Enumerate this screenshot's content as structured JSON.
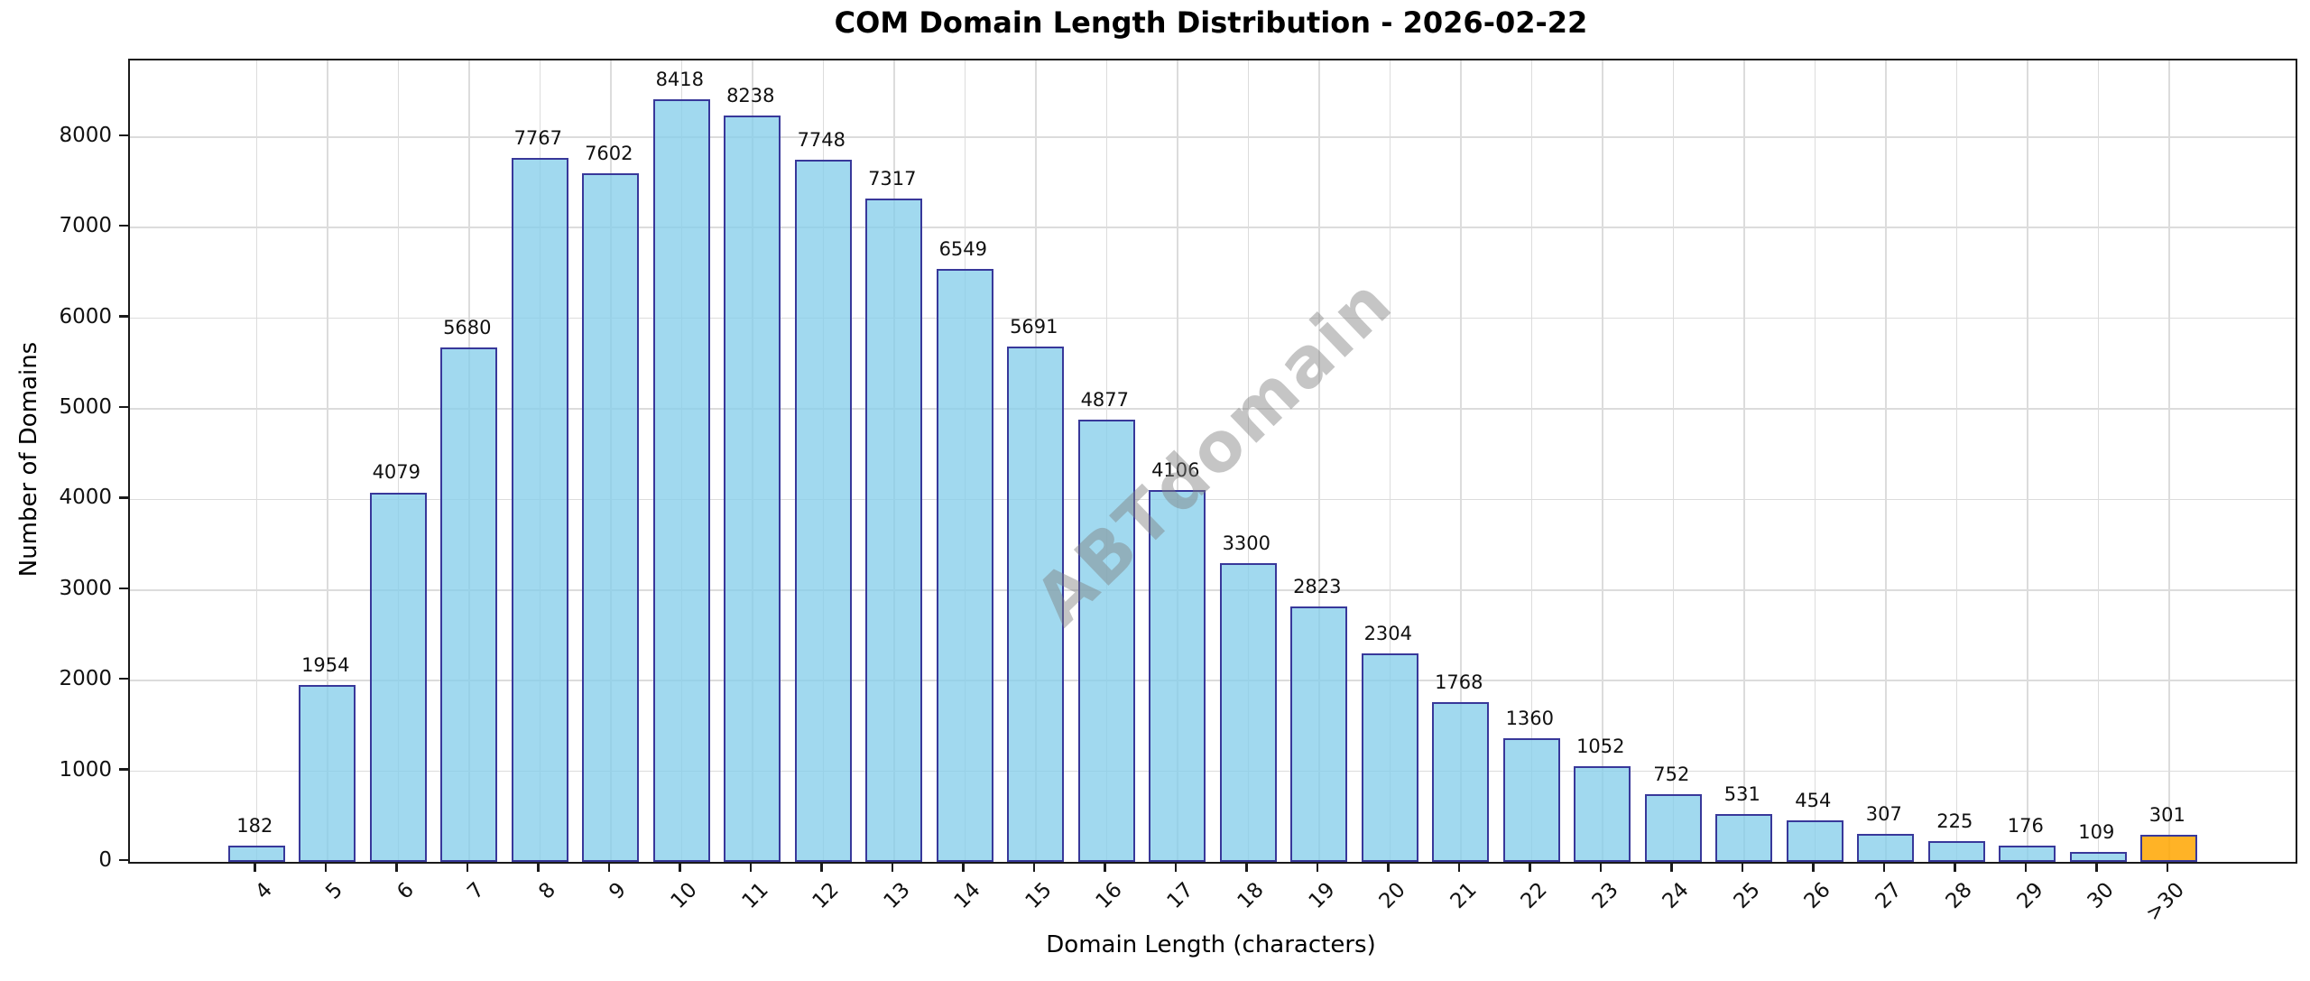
{
  "title": "COM Domain Length Distribution - 2026-02-22",
  "watermark": "ABTdomain",
  "chart_data": {
    "type": "bar",
    "title": "COM Domain Length Distribution - 2026-02-22",
    "xlabel": "Domain Length (characters)",
    "ylabel": "Number of Domains",
    "categories": [
      "4",
      "5",
      "6",
      "7",
      "8",
      "9",
      "10",
      "11",
      "12",
      "13",
      "14",
      "15",
      "16",
      "17",
      "18",
      "19",
      "20",
      "21",
      "22",
      "23",
      "24",
      "25",
      "26",
      "27",
      "28",
      "29",
      "30",
      ">30"
    ],
    "values": [
      182,
      1954,
      4079,
      5680,
      7767,
      7602,
      8418,
      8238,
      7748,
      7317,
      6549,
      5691,
      4877,
      4106,
      3300,
      2823,
      2304,
      1768,
      1360,
      1052,
      752,
      531,
      454,
      307,
      225,
      176,
      109,
      301
    ],
    "yticks": [
      0,
      1000,
      2000,
      3000,
      4000,
      5000,
      6000,
      7000,
      8000
    ],
    "ylim": [
      0,
      8845
    ],
    "grid": true,
    "legend": "none",
    "bar_fill": "rgba(135,206,235,0.78)",
    "bar_edge": "#38389A",
    "highlight_category": ">30",
    "highlight_fill": "rgba(255,166,0,0.85)",
    "gridline_color": "#dcdcdc",
    "watermark_color": "rgba(127,127,127,0.45)",
    "x_tick_rotation_deg": -45
  }
}
